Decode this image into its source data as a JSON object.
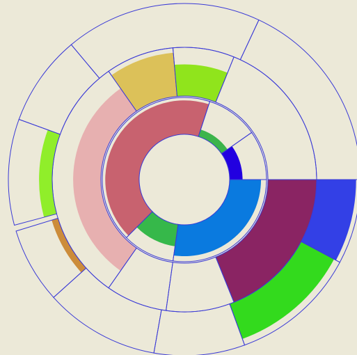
{
  "chart_data": {
    "type": "sunburst",
    "outline_color": "#3a3ad6",
    "rings": [
      {
        "cells": [
          {
            "start": 225,
            "end": 18,
            "value": 0.92,
            "color": "#c8626f"
          },
          {
            "start": 18,
            "end": 55,
            "value": 0.2,
            "color": "#3cb44b"
          },
          {
            "start": 55,
            "end": 90,
            "value": 0.35,
            "color": "#2200e0"
          },
          {
            "start": 90,
            "end": 188,
            "value": 0.85,
            "color": "#0a7adf"
          },
          {
            "start": 188,
            "end": 225,
            "value": 0.6,
            "color": "#36b84a"
          }
        ]
      },
      {
        "cells": [
          {
            "start": 215,
            "end": 325,
            "value": 0.57,
            "color": "#e7b0b0"
          },
          {
            "start": 325,
            "end": 355,
            "value": 0.9,
            "color": "#dcc159"
          },
          {
            "start": 355,
            "end": 22,
            "value": 0.65,
            "color": "#90e41c"
          },
          {
            "start": 22,
            "end": 90
          },
          {
            "start": 90,
            "end": 158,
            "value": 1.0,
            "color": "#8a2463"
          },
          {
            "start": 158,
            "end": 188
          },
          {
            "start": 188,
            "end": 215
          }
        ]
      },
      {
        "cells": [
          {
            "start": 90,
            "end": 118,
            "value": 0.9,
            "color": "#3340e6"
          },
          {
            "start": 118,
            "end": 160,
            "value": 0.85,
            "color": "#33da1d"
          },
          {
            "start": 160,
            "end": 190
          },
          {
            "start": 190,
            "end": 228
          },
          {
            "start": 228,
            "end": 253,
            "value": 0.15,
            "color": "#cc8c3a"
          },
          {
            "start": 255,
            "end": 290,
            "value": 0.3,
            "color": "#90ee2a"
          },
          {
            "start": 290,
            "end": 320
          },
          {
            "start": 320,
            "end": 25
          },
          {
            "start": 25,
            "end": 90
          }
        ]
      }
    ]
  }
}
